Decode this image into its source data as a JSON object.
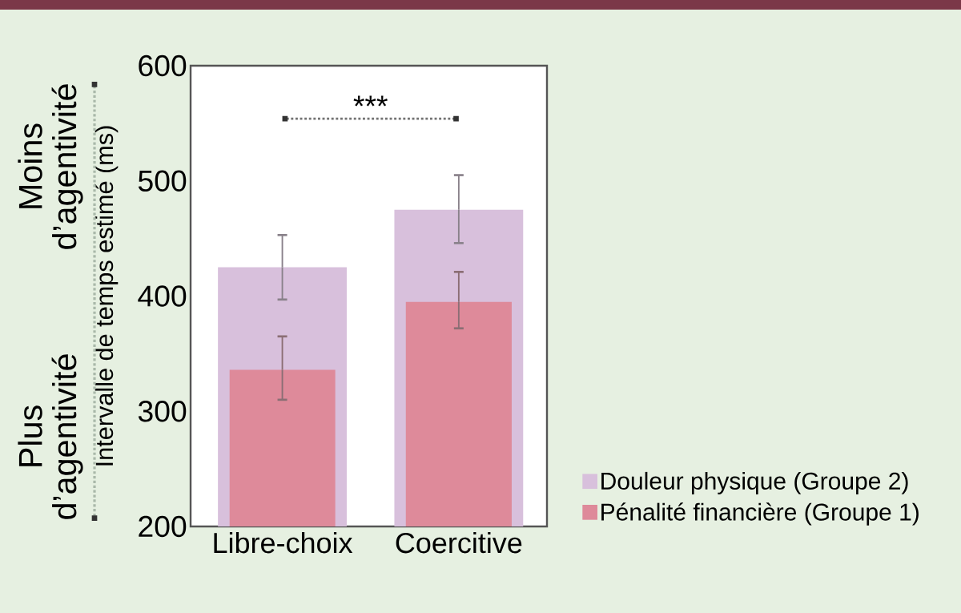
{
  "chart_data": {
    "type": "bar",
    "categories": [
      "Libre-choix",
      "Coercitive"
    ],
    "ylabel": "Intervalle de temps estimé (ms)",
    "ylim": [
      200,
      600
    ],
    "yticks": [
      200,
      300,
      400,
      500,
      600
    ],
    "series": [
      {
        "name": "Douleur physique (Groupe 2)",
        "color": "#d8c0dc",
        "values": [
          425,
          475
        ],
        "errors": [
          [
            397,
            453
          ],
          [
            446,
            505
          ]
        ]
      },
      {
        "name": "Pénalité financière (Groupe 1)",
        "color": "#de8a9a",
        "values": [
          336,
          395
        ],
        "errors": [
          [
            310,
            365
          ],
          [
            372,
            421
          ]
        ]
      }
    ],
    "legend": "bottom right",
    "grid": false,
    "annotations": [
      "***",
      "Moins d’agentivité",
      "Plus d’agentivité"
    ]
  }
}
